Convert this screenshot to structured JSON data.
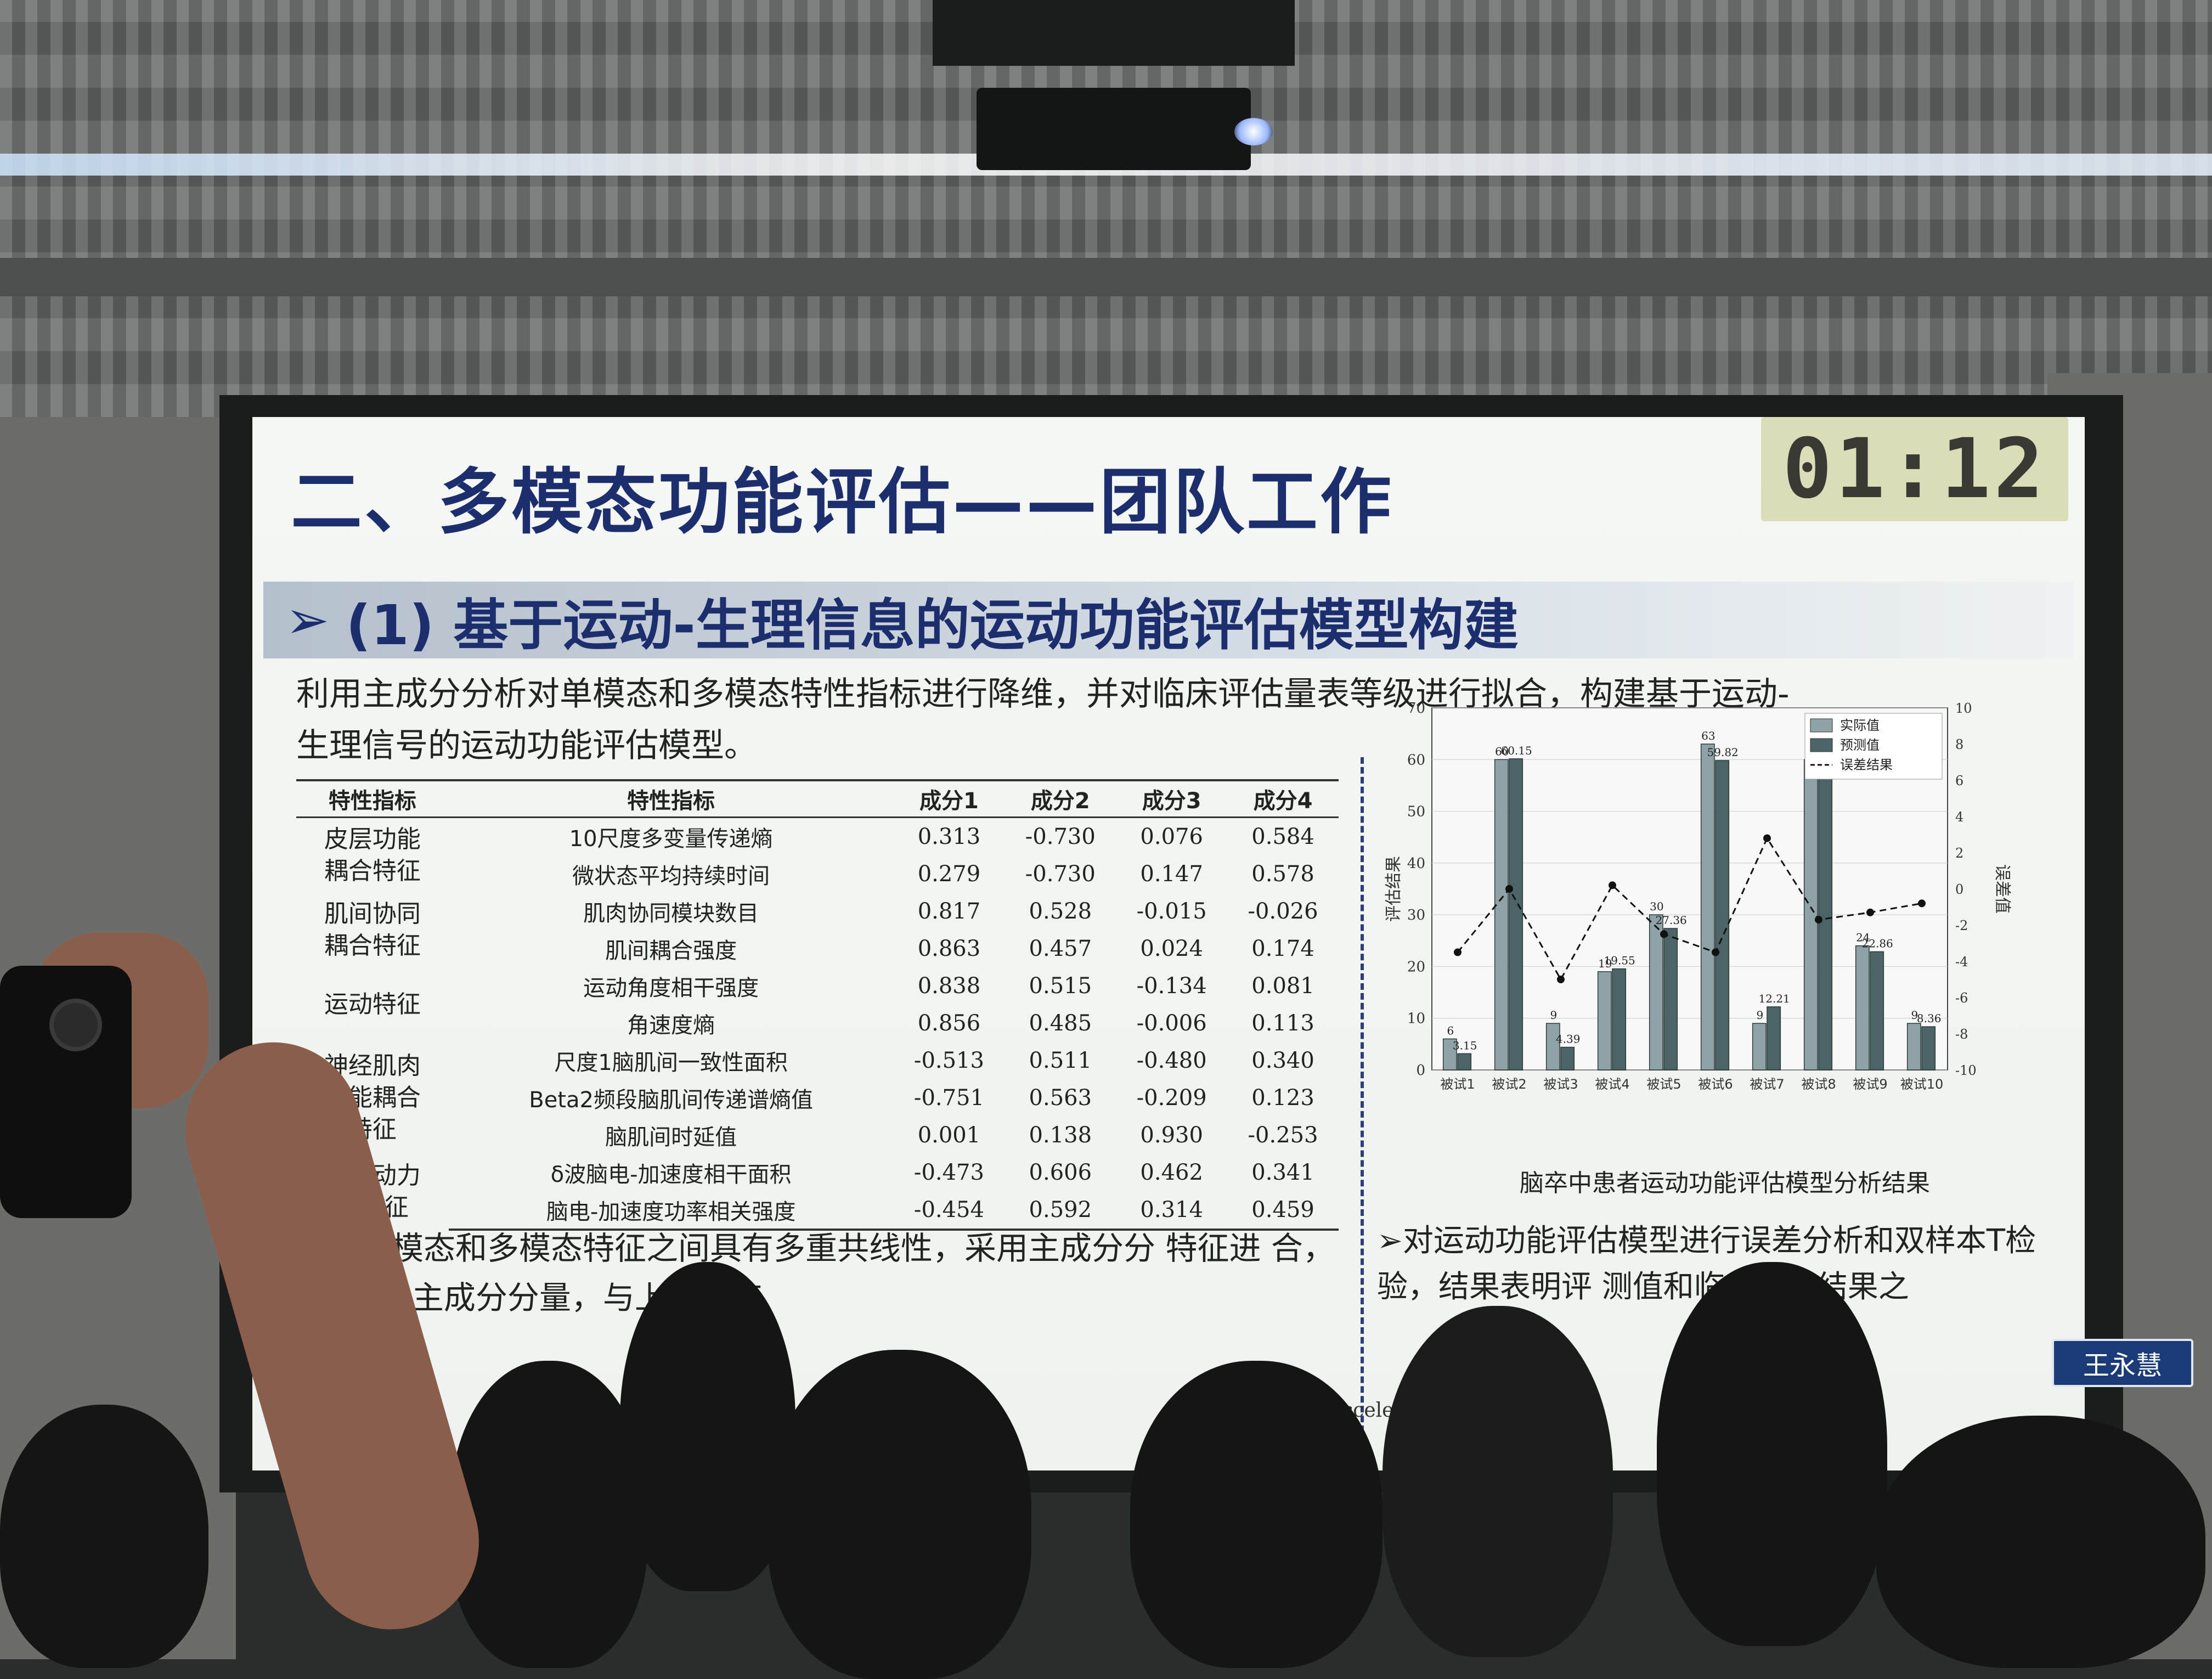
{
  "timer": "01:12",
  "title": "二、多模态功能评估——团队工作",
  "subtitle": "(1) 基于运动-生理信息的运动功能评估模型构建",
  "intro_line1": "利用主成分分析对单模态和多模态特性指标进行降维，并对临床评估量表等级进行拟合，构建基于运动-",
  "intro_line2": "生理信号的运动功能评估模型。",
  "table": {
    "headers": [
      "特性指标",
      "特性指标",
      "成分1",
      "成分2",
      "成分3",
      "成分4"
    ],
    "groups": [
      {
        "category": "皮层功能\n耦合特征",
        "rows": [
          {
            "indicator": "10尺度多变量传递熵",
            "v": [
              "0.313",
              "-0.730",
              "0.076",
              "0.584"
            ]
          },
          {
            "indicator": "微状态平均持续时间",
            "v": [
              "0.279",
              "-0.730",
              "0.147",
              "0.578"
            ]
          }
        ]
      },
      {
        "category": "肌间协同\n耦合特征",
        "rows": [
          {
            "indicator": "肌肉协同模块数目",
            "v": [
              "0.817",
              "0.528",
              "-0.015",
              "-0.026"
            ]
          },
          {
            "indicator": "肌间耦合强度",
            "v": [
              "0.863",
              "0.457",
              "0.024",
              "0.174"
            ]
          }
        ]
      },
      {
        "category": "运动特征",
        "rows": [
          {
            "indicator": "运动角度相干强度",
            "v": [
              "0.838",
              "0.515",
              "-0.134",
              "0.081"
            ]
          },
          {
            "indicator": "角速度熵",
            "v": [
              "0.856",
              "0.485",
              "-0.006",
              "0.113"
            ]
          }
        ]
      },
      {
        "category": "神经肌肉\n功能耦合\n特征",
        "rows": [
          {
            "indicator": "尺度1脑肌间一致性面积",
            "v": [
              "-0.513",
              "0.511",
              "-0.480",
              "0.340"
            ]
          },
          {
            "indicator": "Beta2频段脑肌间传递谱熵值",
            "v": [
              "-0.751",
              "0.563",
              "-0.209",
              "0.123"
            ]
          },
          {
            "indicator": "脑肌间时延值",
            "v": [
              "0.001",
              "0.138",
              "0.930",
              "-0.253"
            ]
          }
        ]
      },
      {
        "category": "神经动力\n学特征",
        "rows": [
          {
            "indicator": "δ波脑电-加速度相干面积",
            "v": [
              "-0.473",
              "0.606",
              "0.462",
              "0.341"
            ]
          },
          {
            "indicator": "脑电-加速度功率相关强度",
            "v": [
              "-0.454",
              "0.592",
              "0.314",
              "0.459"
            ]
          }
        ]
      }
    ]
  },
  "left_bottom_text": "取的单模态和多模态特征之间具有多重共线性，采用主成分分 特征进 合，可得4个主成分分量，与上田敏临",
  "right_text": "对运动功能评估模型进行误差分析和双样本T检验，结果表明评 测值和临床评估结果之",
  "citation": "Acceleration Study. IEEE",
  "name_tag": "王永慧",
  "chart_data": {
    "type": "bar",
    "title": "脑卒中患者运动功能评估模型分析结果",
    "ylabel": "评估结果",
    "y2label": "误差值",
    "categories": [
      "被试1",
      "被试2",
      "被试3",
      "被试4",
      "被试5",
      "被试6",
      "被试7",
      "被试8",
      "被试9",
      "被试10"
    ],
    "series": [
      {
        "name": "实际值",
        "values": [
          6,
          60,
          9,
          19,
          30,
          63,
          9,
          60,
          24,
          9
        ],
        "color": "#8fa3a6"
      },
      {
        "name": "预测值",
        "values": [
          3.15,
          60.15,
          4.39,
          19.55,
          27.36,
          59.82,
          12.21,
          58.31,
          22.86,
          8.36
        ],
        "color": "#4d6467"
      },
      {
        "name": "误差结果",
        "values": [
          -3.5,
          0,
          -5,
          0.2,
          -2.5,
          -3.5,
          2.8,
          -1.7,
          -1.3,
          -0.8
        ],
        "color": "#111111"
      }
    ],
    "ylim": [
      0,
      70
    ],
    "yticks": [
      0,
      10,
      20,
      30,
      40,
      50,
      60,
      70
    ],
    "y2lim": [
      -10,
      10
    ],
    "y2ticks": [
      -10,
      -8,
      -6,
      -4,
      -2,
      0,
      2,
      4,
      6,
      8,
      10
    ],
    "labels": [
      "6",
      "3.15",
      "60",
      "60.15",
      "9",
      "4.39",
      "19",
      "19.55",
      "30",
      "27.36",
      "63",
      "59.82",
      "9",
      "12.21",
      "60",
      "58.31",
      "24",
      "22.86",
      "9",
      "8.36"
    ],
    "legend": "top-right",
    "grid": true
  }
}
